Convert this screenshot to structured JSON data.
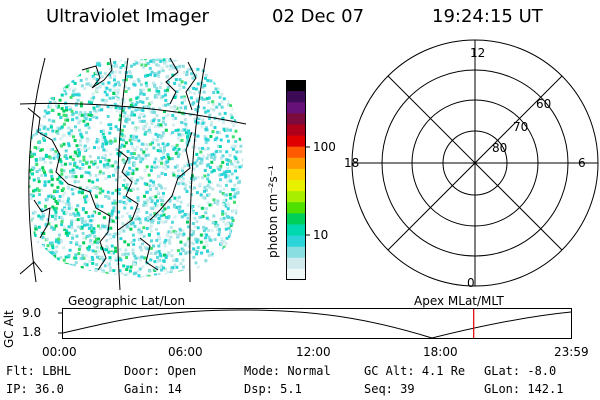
{
  "header": {
    "instrument": "Ultraviolet Imager",
    "date": "02 Dec 07",
    "time": "19:24:15 UT"
  },
  "left_panel": {
    "label": "Geographic Lat/Lon"
  },
  "colorbar": {
    "unit_label": "photon cm⁻²s⁻¹",
    "ticks": [
      "100",
      "10"
    ],
    "colors": [
      "#000000",
      "#3d0a55",
      "#66107a",
      "#7a0b3c",
      "#b0001a",
      "#e00000",
      "#ff5a00",
      "#ff9c00",
      "#ffd000",
      "#e8f000",
      "#a8ee00",
      "#4fe000",
      "#00d05a",
      "#00d8b0",
      "#2ad4d8",
      "#88dee0",
      "#cfe9ec",
      "#f0f8f8"
    ]
  },
  "polar": {
    "label": "Apex MLat/MLT",
    "mlt_labels": {
      "top": "12",
      "left": "18",
      "right": "6",
      "bottom": "0"
    },
    "lat_labels": [
      "60",
      "70",
      "80"
    ]
  },
  "strip": {
    "axis_label": "GC Alt",
    "y_ticks": [
      "9.0",
      "1.8"
    ],
    "x_ticks": [
      "00:00",
      "06:00",
      "12:00",
      "18:00",
      "23:59"
    ],
    "time_marker_fraction": 0.8085
  },
  "status": {
    "row1": [
      {
        "key": "Flt:",
        "value": "LBHL"
      },
      {
        "key": "Door:",
        "value": "Open"
      },
      {
        "key": "Mode:",
        "value": "Normal"
      },
      {
        "key": "GC Alt:",
        "value": "4.1 Re"
      },
      {
        "key": "GLat:",
        "value": "-8.0"
      }
    ],
    "row2": [
      {
        "key": "IP:",
        "value": "36.0"
      },
      {
        "key": "Gain:",
        "value": "14"
      },
      {
        "key": "Dsp:",
        "value": "5.1"
      },
      {
        "key": "Seq:",
        "value": "39"
      },
      {
        "key": "GLon:",
        "value": "142.1"
      }
    ]
  }
}
